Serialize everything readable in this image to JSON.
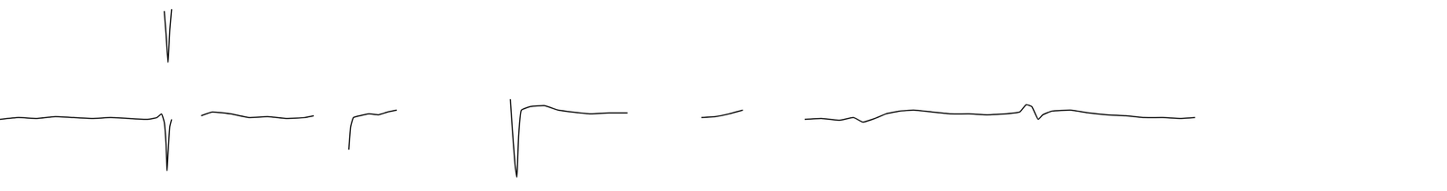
{
  "chart_data": {
    "type": "line",
    "color": "#000000",
    "grid": false,
    "tick_labels": false,
    "xlim": [
      0,
      1568
    ],
    "ylim": [
      0,
      208
    ],
    "x": [
      0,
      20,
      40,
      60,
      80,
      100,
      120,
      140,
      160,
      170,
      175,
      178,
      180,
      181,
      182,
      184,
      186,
      187,
      178,
      180,
      182,
      184,
      186,
      200,
      218,
      230,
      250,
      270,
      290,
      310,
      330,
      340,
      360,
      378,
      380,
      383,
      390,
      400,
      410,
      420,
      430,
      500,
      553,
      555,
      558,
      560,
      562,
      565,
      575,
      590,
      605,
      620,
      640,
      660,
      680,
      720,
      760,
      775,
      790,
      805,
      840,
      872,
      890,
      910,
      925,
      935,
      948,
      960,
      975,
      990,
      1010,
      1030,
      1050,
      1070,
      1090,
      1105,
      1112,
      1118,
      1125,
      1130,
      1140,
      1160,
      1180,
      1200,
      1220,
      1240,
      1260,
      1280,
      1295
    ],
    "values": [
      78,
      80,
      79,
      81,
      80,
      79,
      80,
      79,
      78,
      80,
      84,
      75,
      50,
      22,
      40,
      70,
      78,
      null,
      196,
      170,
      140,
      175,
      198,
      null,
      82,
      86,
      84,
      80,
      81,
      79,
      80,
      82,
      null,
      45,
      70,
      80,
      82,
      84,
      83,
      86,
      88,
      null,
      100,
      70,
      30,
      15,
      60,
      88,
      92,
      93,
      88,
      86,
      84,
      85,
      85,
      null,
      80,
      81,
      84,
      88,
      null,
      78,
      79,
      77,
      80,
      75,
      79,
      84,
      87,
      88,
      86,
      84,
      84,
      83,
      84,
      86,
      94,
      92,
      78,
      83,
      87,
      88,
      85,
      83,
      82,
      80,
      80,
      79,
      80
    ]
  }
}
